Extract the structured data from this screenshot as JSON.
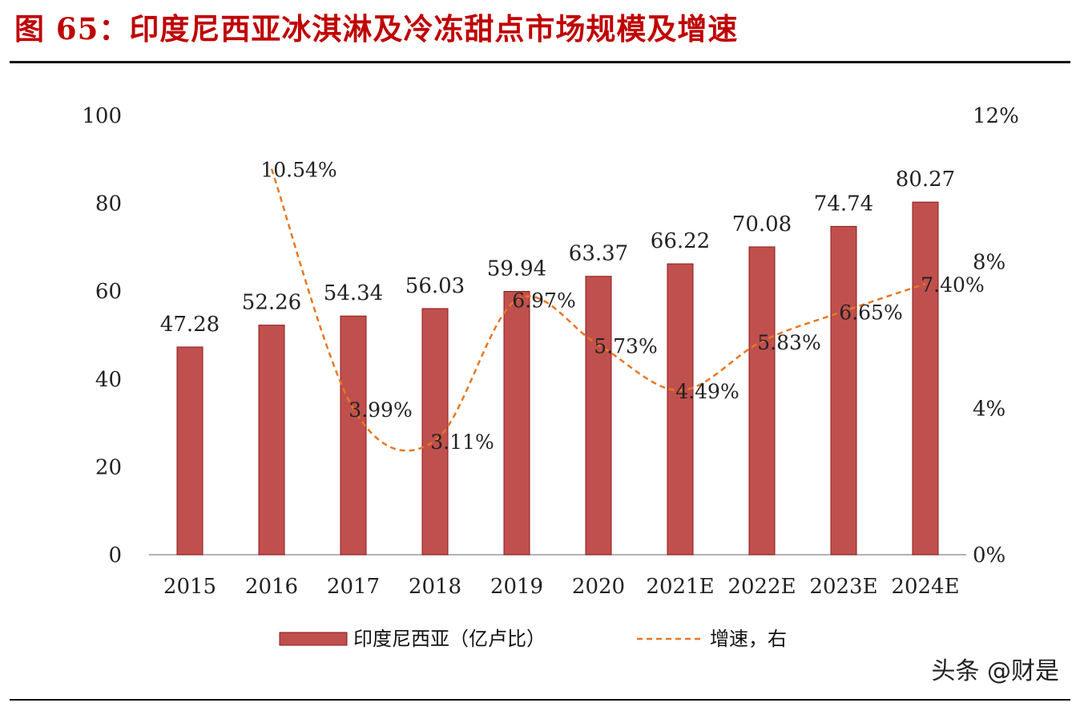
{
  "title": "图 65：印度尼西亚冰淇淋及冷冻甜点市场规模及增速",
  "watermark": "头条 @财是",
  "colors": {
    "bar": "#c0504d",
    "bar_stroke": "#8b1a1a",
    "line": "#e87722",
    "title": "#c00000"
  },
  "chart_data": {
    "type": "bar",
    "categories": [
      "2015",
      "2016",
      "2017",
      "2018",
      "2019",
      "2020",
      "2021E",
      "2022E",
      "2023E",
      "2024E"
    ],
    "series": [
      {
        "name": "印度尼西亚（亿卢比）",
        "type": "bar",
        "axis": "left",
        "values": [
          47.28,
          52.26,
          54.34,
          56.03,
          59.94,
          63.37,
          66.22,
          70.08,
          74.74,
          80.27
        ],
        "labels": [
          "47.28",
          "52.26",
          "54.34",
          "56.03",
          "59.94",
          "63.37",
          "66.22",
          "70.08",
          "74.74",
          "80.27"
        ]
      },
      {
        "name": "增速，右",
        "type": "line",
        "style": "dashed",
        "axis": "right",
        "values": [
          null,
          10.54,
          3.99,
          3.11,
          6.97,
          5.73,
          4.49,
          5.83,
          6.65,
          7.4
        ],
        "labels": [
          null,
          "10.54%",
          "3.99%",
          "3.11%",
          "6.97%",
          "5.73%",
          "4.49%",
          "5.83%",
          "6.65%",
          "7.40%"
        ]
      }
    ],
    "y_left": {
      "min": 0,
      "max": 100,
      "ticks": [
        "0",
        "20",
        "40",
        "60",
        "80",
        "100"
      ]
    },
    "y_right": {
      "min": 0,
      "max": 12,
      "ticks": [
        "0%",
        "4%",
        "8%",
        "12%"
      ]
    },
    "legend": "bottom",
    "grid": false
  }
}
